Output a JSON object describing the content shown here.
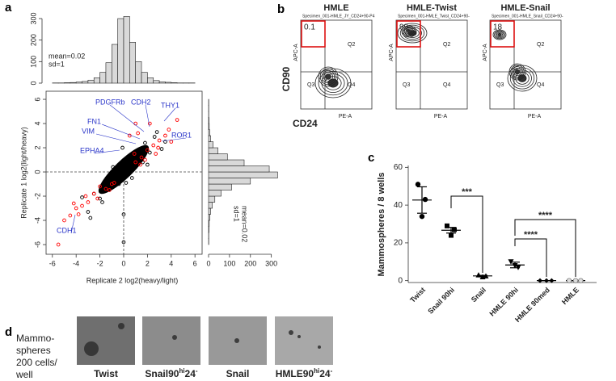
{
  "panel_labels": [
    "a",
    "b",
    "c",
    "d"
  ],
  "chart_data": [
    {
      "type": "scatter",
      "xlabel": "Replicate 2 log2(heavy/light)",
      "ylabel": "Replicate 1 log2(light/heavy)",
      "xlim": [
        -6.53,
        6.6
      ],
      "ylim": [
        -6.8,
        6.67
      ],
      "xticks": [
        -6,
        -4,
        -2,
        0,
        2,
        4,
        6
      ],
      "yticks": [
        -6,
        -4,
        -2,
        0,
        2,
        4,
        6
      ],
      "series": [
        {
          "color": "#000000",
          "x": [
            -0.5,
            0,
            0.3,
            0.5,
            -0.2,
            0.1,
            0.8,
            -0.8,
            0.4,
            -0.3,
            0.6,
            1.0,
            -1.0,
            0.2,
            -0.6,
            1.2,
            -1.5,
            1.6,
            -2.0,
            2.2,
            -2.5,
            2.6,
            -3.0,
            3.2,
            0.0,
            0.0,
            -0.1,
            0.7,
            -0.9,
            1.4,
            2.0,
            -1.8,
            3.5,
            -3.5,
            0.9,
            -0.4,
            1.8,
            -1.2,
            2.8,
            -2.8
          ],
          "y": [
            -0.4,
            0.1,
            0.5,
            0.2,
            -0.6,
            -0.2,
            0.9,
            -0.7,
            0.0,
            0.3,
            0.6,
            0.4,
            -1.3,
            -0.9,
            -0.1,
            1.5,
            -0.9,
            0.8,
            -2.2,
            1.6,
            -1.8,
            2.9,
            -3.3,
            1.9,
            -3.5,
            -5.8,
            2.0,
            -0.5,
            0.4,
            1.9,
            0.6,
            -2.5,
            2.5,
            -2.1,
            1.2,
            -1.0,
            2.4,
            -0.4,
            3.3,
            -3.8
          ]
        },
        {
          "color": "#ff0000",
          "x": [
            1.0,
            1.5,
            2.0,
            2.5,
            3.0,
            3.5,
            1.2,
            2.2,
            3.8,
            4.0,
            1.8,
            2.7,
            0.9,
            1.4,
            -1.0,
            -1.5,
            -2.0,
            -3.0,
            -3.5,
            -4.0,
            -4.5,
            -5.0,
            -4.2,
            -3.2,
            -2.5,
            -5.5,
            -1.2,
            -0.8,
            -3.8,
            -2.2,
            1.0,
            0.5,
            4.5,
            2.9
          ],
          "y": [
            0.8,
            1.2,
            1.8,
            2.2,
            2.6,
            3.0,
            3.2,
            4.0,
            3.5,
            2.5,
            1.0,
            1.5,
            1.5,
            0.6,
            -1.0,
            -1.4,
            -1.2,
            -2.5,
            -2.8,
            -3.0,
            -3.6,
            -4.0,
            -2.6,
            -2.0,
            -1.8,
            -6.0,
            -1.5,
            -0.9,
            -3.5,
            -2.2,
            4.0,
            3.0,
            4.3,
            2.0
          ]
        }
      ],
      "annotations": [
        "PDGFRb",
        "CDH2",
        "THY1",
        "FN1",
        "VIM",
        "ROR1",
        "EPHA4",
        "CDH1"
      ]
    },
    {
      "type": "histogram",
      "bins": [
        -6,
        -5.5,
        -5,
        -4.5,
        -4,
        -3.5,
        -3,
        -2.5,
        -2,
        -1.5,
        -1,
        -0.5,
        0,
        0.5,
        1,
        1.5,
        2,
        2.5,
        3,
        3.5,
        4,
        4.5,
        5,
        5.5,
        6
      ],
      "values": [
        1,
        1,
        2,
        3,
        5,
        8,
        14,
        25,
        50,
        95,
        180,
        300,
        310,
        190,
        100,
        50,
        25,
        12,
        6,
        4,
        2,
        1,
        1,
        1
      ],
      "xlim": [
        -6.53,
        6.6
      ],
      "ylim": [
        0,
        330
      ],
      "yticks": [
        0,
        100,
        200,
        300
      ],
      "color": "#d9d9d9",
      "annotations": [
        "mean=0.02",
        "sd=1"
      ]
    },
    {
      "type": "histogram",
      "orientation": "horizontal",
      "bins": [
        -6,
        -5.5,
        -5,
        -4.5,
        -4,
        -3.5,
        -3,
        -2.5,
        -2,
        -1.5,
        -1,
        -0.5,
        0,
        0.5,
        1,
        1.5,
        2,
        2.5,
        3,
        3.5,
        4,
        4.5,
        5,
        5.5,
        6
      ],
      "values": [
        1,
        1,
        2,
        3,
        6,
        10,
        18,
        30,
        60,
        110,
        200,
        330,
        290,
        170,
        90,
        45,
        22,
        10,
        5,
        3,
        2,
        1,
        1,
        1
      ],
      "ylim": [
        -6.8,
        6.67
      ],
      "xlim": [
        0,
        340
      ],
      "xticks": [
        0,
        100,
        200,
        300
      ],
      "color": "#d9d9d9",
      "annotations": [
        "mean=0.02",
        "sd=1"
      ]
    },
    {
      "type": "dot",
      "ylabel": "Mammospheres / 8 wells",
      "categories": [
        "Twist",
        "Snail 90hi",
        "Snail",
        "HMLE 90hi",
        "HMLE 90med",
        "HMLE"
      ],
      "points": [
        [
          51,
          43,
          34
        ],
        [
          29,
          27,
          24
        ],
        [
          3,
          2.5,
          2
        ],
        [
          10,
          7,
          8
        ],
        [
          0,
          0,
          0
        ],
        [
          0,
          0,
          0
        ]
      ],
      "means": [
        42.7,
        26.7,
        2.5,
        8.3,
        0,
        0
      ],
      "sem": [
        7,
        1.5,
        0.3,
        1.5,
        0,
        0
      ],
      "ylim": [
        -1,
        61
      ],
      "yticks": [
        0,
        20,
        40,
        60
      ],
      "annotations": [
        "***",
        "****",
        "****"
      ]
    }
  ],
  "flow": {
    "axis_y": "CD90",
    "axis_x": "CD24",
    "plots": [
      {
        "title": "HMLE",
        "specimen": "Specimen_001-HMLE_JY_CD24+90-P4",
        "q1": 0.1,
        "quadrants": [
          "Q2",
          "Q3",
          "Q4"
        ],
        "ylabel": "APC-A",
        "xlabel": "PE-A"
      },
      {
        "title": "HMLE-Twist",
        "specimen": "Specimen_001-HMLE_Twist_CD24+90-",
        "q1": 99,
        "quadrants": [
          "Q2",
          "Q3",
          "Q4"
        ],
        "ylabel": "APC-A",
        "xlabel": "PE-A"
      },
      {
        "title": "HMLE-Snail",
        "specimen": "Specimen_001-HMLE_Snail_CD24+90-",
        "q1": 18,
        "quadrants": [
          "Q2",
          "Q3",
          "Q4"
        ],
        "ylabel": "APC-A",
        "xlabel": "PE-A"
      }
    ]
  },
  "images": {
    "caption": [
      "Mammo-",
      "spheres",
      "200 cells/",
      "well"
    ],
    "labels": [
      [
        "Twist"
      ],
      [
        "Snail90",
        "hi",
        "24",
        "-"
      ],
      [
        "Snail"
      ],
      [
        "HMLE90",
        "hi",
        "24",
        "-"
      ]
    ]
  }
}
